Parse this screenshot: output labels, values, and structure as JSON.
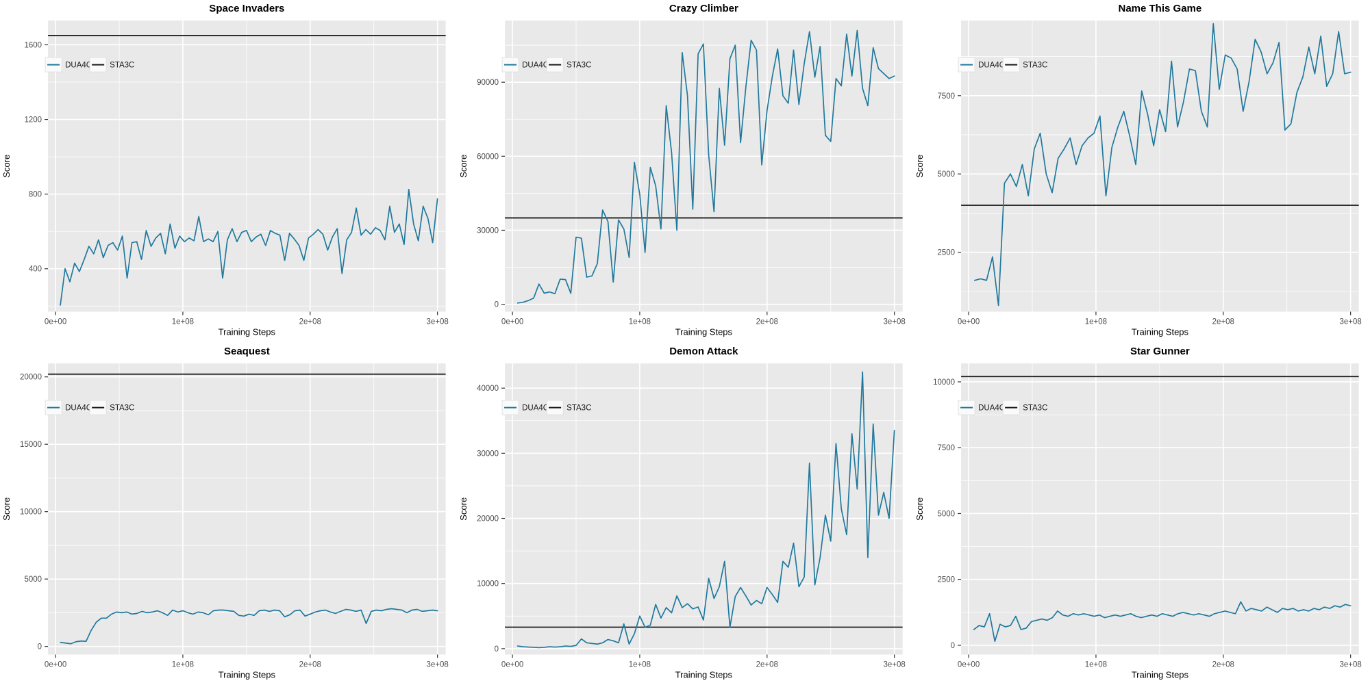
{
  "figure": {
    "x_axis_label": "Training Steps",
    "y_axis_label": "Score",
    "legend_labels": [
      "DUA4C",
      "STA3C"
    ],
    "x_tick_labels": [
      "0e+00",
      "1e+08",
      "2e+08",
      "3e+08"
    ]
  },
  "style": {
    "panel_bg": "#e9e9e9",
    "grid_color": "#ffffff",
    "line_color": "#20799d",
    "hline_color": "#1a1a1a",
    "tick_mark_color": "#333333",
    "tick_label_color": "#4d4d4d",
    "title_color": "#000000",
    "legend_key_bg": "#fafafa",
    "legend_key_border": "#e2e2e2"
  },
  "chart_data": [
    {
      "type": "line",
      "title": "Space Invaders",
      "xlabel": "Training Steps",
      "ylabel": "Score",
      "grid": true,
      "legend_position": "top-left-inside",
      "x_range": [
        0,
        300000000
      ],
      "xticks": [
        0,
        100000000,
        200000000,
        300000000
      ],
      "xtick_labels": [
        "0e+00",
        "1e+08",
        "2e+08",
        "3e+08"
      ],
      "ylim": [
        170,
        1730
      ],
      "yticks": [
        400,
        800,
        1200,
        1600
      ],
      "ytick_labels": [
        "400",
        "800",
        "1200",
        "1600"
      ],
      "series": [
        {
          "name": "DUA4C",
          "kind": "line",
          "values": [
            205,
            400,
            330,
            430,
            385,
            450,
            520,
            480,
            555,
            460,
            525,
            540,
            500,
            575,
            350,
            540,
            545,
            450,
            605,
            520,
            565,
            590,
            480,
            640,
            510,
            575,
            545,
            565,
            550,
            680,
            545,
            560,
            545,
            600,
            350,
            555,
            615,
            545,
            595,
            605,
            545,
            570,
            585,
            525,
            605,
            590,
            580,
            445,
            590,
            560,
            525,
            445,
            565,
            585,
            610,
            585,
            500,
            570,
            615,
            375,
            555,
            595,
            725,
            580,
            610,
            585,
            620,
            605,
            555,
            735,
            595,
            640,
            530,
            825,
            640,
            550,
            735,
            670,
            540,
            775
          ]
        },
        {
          "name": "STA3C",
          "kind": "hline",
          "value": 1650
        }
      ]
    },
    {
      "type": "line",
      "title": "Crazy Climber",
      "xlabel": "Training Steps",
      "ylabel": "Score",
      "grid": true,
      "legend_position": "top-left-inside",
      "x_range": [
        0,
        300000000
      ],
      "xticks": [
        0,
        100000000,
        200000000,
        300000000
      ],
      "xtick_labels": [
        "0e+00",
        "1e+08",
        "2e+08",
        "3e+08"
      ],
      "ylim": [
        -3000,
        115000
      ],
      "yticks": [
        0,
        30000,
        60000,
        90000
      ],
      "ytick_labels": [
        "0",
        "30000",
        "60000",
        "90000"
      ],
      "series": [
        {
          "name": "DUA4C",
          "kind": "line",
          "values": [
            500,
            800,
            1500,
            2500,
            8200,
            4500,
            5000,
            4300,
            10200,
            10000,
            4400,
            27200,
            26800,
            11000,
            11500,
            16500,
            38200,
            33500,
            9000,
            34200,
            30500,
            19000,
            57500,
            44500,
            21000,
            55500,
            48000,
            30500,
            80500,
            61500,
            30000,
            102000,
            84500,
            38500,
            101500,
            105500,
            60500,
            37500,
            87500,
            64500,
            99500,
            105000,
            65500,
            88000,
            107000,
            103000,
            56500,
            78500,
            92500,
            103500,
            84500,
            81500,
            103000,
            81000,
            97500,
            110500,
            92000,
            104500,
            68500,
            66000,
            91500,
            88500,
            109500,
            92500,
            111000,
            87500,
            80500,
            104000,
            95500,
            93500,
            91500,
            92500
          ]
        },
        {
          "name": "STA3C",
          "kind": "hline",
          "value": 35000
        }
      ]
    },
    {
      "type": "line",
      "title": "Name This Game",
      "xlabel": "Training Steps",
      "ylabel": "Score",
      "grid": true,
      "legend_position": "top-left-inside",
      "x_range": [
        0,
        300000000
      ],
      "xticks": [
        0,
        100000000,
        200000000,
        300000000
      ],
      "xtick_labels": [
        "0e+00",
        "1e+08",
        "2e+08",
        "3e+08"
      ],
      "ylim": [
        600,
        9900
      ],
      "yticks": [
        2500,
        5000,
        7500
      ],
      "ytick_labels": [
        "2500",
        "5000",
        "7500"
      ],
      "series": [
        {
          "name": "DUA4C",
          "kind": "line",
          "values": [
            1600,
            1650,
            1600,
            2350,
            800,
            4700,
            5000,
            4600,
            5300,
            4300,
            5800,
            6300,
            5000,
            4400,
            5500,
            5800,
            6150,
            5300,
            5900,
            6150,
            6300,
            6850,
            4300,
            5850,
            6500,
            7000,
            6200,
            5300,
            7650,
            6900,
            5900,
            7050,
            6350,
            8600,
            6500,
            7300,
            8350,
            8300,
            7000,
            6500,
            9800,
            7700,
            8800,
            8700,
            8350,
            7000,
            7950,
            9300,
            8900,
            8200,
            8550,
            9200,
            6400,
            6600,
            7600,
            8100,
            9050,
            8200,
            9400,
            7800,
            8200,
            9550,
            8200,
            8250
          ]
        },
        {
          "name": "STA3C",
          "kind": "hline",
          "value": 4000
        }
      ]
    },
    {
      "type": "line",
      "title": "Seaquest",
      "xlabel": "Training Steps",
      "ylabel": "Score",
      "grid": true,
      "legend_position": "top-left-inside",
      "x_range": [
        0,
        300000000
      ],
      "xticks": [
        0,
        100000000,
        200000000,
        300000000
      ],
      "xtick_labels": [
        "0e+00",
        "1e+08",
        "2e+08",
        "3e+08"
      ],
      "ylim": [
        -600,
        21000
      ],
      "yticks": [
        0,
        5000,
        10000,
        15000,
        20000
      ],
      "ytick_labels": [
        "0",
        "5000",
        "10000",
        "15000",
        "20000"
      ],
      "series": [
        {
          "name": "DUA4C",
          "kind": "line",
          "values": [
            300,
            250,
            200,
            350,
            400,
            380,
            1200,
            1800,
            2100,
            2100,
            2400,
            2550,
            2500,
            2550,
            2400,
            2450,
            2600,
            2500,
            2550,
            2650,
            2500,
            2300,
            2700,
            2550,
            2650,
            2500,
            2400,
            2550,
            2500,
            2350,
            2650,
            2700,
            2700,
            2650,
            2600,
            2300,
            2250,
            2400,
            2300,
            2650,
            2700,
            2600,
            2700,
            2650,
            2200,
            2350,
            2650,
            2700,
            2250,
            2400,
            2550,
            2650,
            2700,
            2550,
            2450,
            2600,
            2750,
            2700,
            2600,
            2700,
            1700,
            2600,
            2700,
            2650,
            2750,
            2800,
            2750,
            2700,
            2500,
            2700,
            2750,
            2600,
            2650,
            2700,
            2650
          ]
        },
        {
          "name": "STA3C",
          "kind": "hline",
          "value": 20200
        }
      ]
    },
    {
      "type": "line",
      "title": "Demon Attack",
      "xlabel": "Training Steps",
      "ylabel": "Score",
      "grid": true,
      "legend_position": "top-left-inside",
      "x_range": [
        0,
        300000000
      ],
      "xticks": [
        0,
        100000000,
        200000000,
        300000000
      ],
      "xtick_labels": [
        "0e+00",
        "1e+08",
        "2e+08",
        "3e+08"
      ],
      "ylim": [
        -900,
        43800
      ],
      "yticks": [
        0,
        10000,
        20000,
        30000,
        40000
      ],
      "ytick_labels": [
        "0",
        "10000",
        "20000",
        "30000",
        "40000"
      ],
      "series": [
        {
          "name": "DUA4C",
          "kind": "line",
          "values": [
            400,
            300,
            250,
            200,
            150,
            200,
            300,
            250,
            300,
            400,
            350,
            500,
            1500,
            900,
            800,
            700,
            900,
            1400,
            1200,
            900,
            3800,
            700,
            2300,
            5000,
            3300,
            3600,
            6800,
            4700,
            6300,
            5500,
            8100,
            6300,
            6900,
            6100,
            6400,
            4400,
            10800,
            7700,
            9500,
            13400,
            3300,
            8000,
            9400,
            8100,
            6700,
            7400,
            6900,
            9400,
            8300,
            7100,
            13400,
            12500,
            16200,
            9500,
            11000,
            28500,
            9800,
            14000,
            20500,
            16500,
            31500,
            21500,
            17500,
            33000,
            24500,
            42500,
            14000,
            34500,
            20500,
            24000,
            20000,
            33500
          ]
        },
        {
          "name": "STA3C",
          "kind": "hline",
          "value": 3300
        }
      ]
    },
    {
      "type": "line",
      "title": "Star Gunner",
      "xlabel": "Training Steps",
      "ylabel": "Score",
      "grid": true,
      "legend_position": "top-left-inside",
      "x_range": [
        0,
        300000000
      ],
      "xticks": [
        0,
        100000000,
        200000000,
        300000000
      ],
      "xtick_labels": [
        "0e+00",
        "1e+08",
        "2e+08",
        "3e+08"
      ],
      "ylim": [
        -350,
        10700
      ],
      "yticks": [
        0,
        2500,
        5000,
        7500,
        10000
      ],
      "ytick_labels": [
        "0",
        "2500",
        "5000",
        "7500",
        "10000"
      ],
      "series": [
        {
          "name": "DUA4C",
          "kind": "line",
          "values": [
            600,
            750,
            700,
            1200,
            150,
            800,
            700,
            750,
            1100,
            600,
            650,
            900,
            950,
            1000,
            950,
            1050,
            1300,
            1150,
            1100,
            1200,
            1150,
            1200,
            1150,
            1100,
            1150,
            1050,
            1100,
            1150,
            1100,
            1150,
            1200,
            1100,
            1050,
            1100,
            1150,
            1100,
            1200,
            1150,
            1100,
            1200,
            1250,
            1200,
            1150,
            1200,
            1150,
            1100,
            1200,
            1250,
            1300,
            1250,
            1200,
            1650,
            1300,
            1400,
            1350,
            1300,
            1450,
            1350,
            1250,
            1400,
            1350,
            1400,
            1300,
            1350,
            1300,
            1400,
            1350,
            1450,
            1400,
            1500,
            1450,
            1550,
            1500
          ]
        },
        {
          "name": "STA3C",
          "kind": "hline",
          "value": 10200
        }
      ]
    }
  ]
}
